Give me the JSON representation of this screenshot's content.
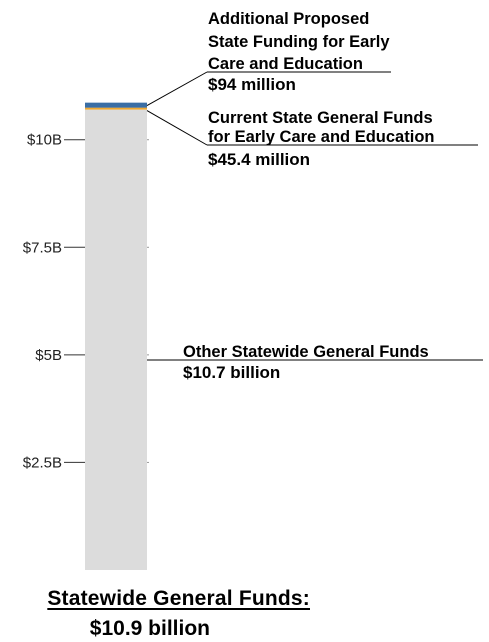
{
  "chart_data": {
    "type": "bar",
    "stacked": true,
    "categories": [
      "Statewide General Funds"
    ],
    "series": [
      {
        "name": "Other Statewide General Funds",
        "value_label": "$10.7 billion",
        "values": [
          10.7
        ],
        "color": "#dcdcdc"
      },
      {
        "name": "Current State General Funds for Early Care and Education",
        "value_label": "$45.4 million",
        "values": [
          0.0454
        ],
        "color": "#f0a830"
      },
      {
        "name": "Additional Proposed State Funding for Early Care and Education",
        "value_label": "$94 million",
        "values": [
          0.094
        ],
        "color": "#3a6ea5"
      }
    ],
    "yticks": [
      2.5,
      5,
      7.5,
      10
    ],
    "ytick_labels": [
      "$2.5B",
      "$5B",
      "$7.5B",
      "$10B"
    ],
    "ylim": [
      0,
      10.9
    ],
    "grid": false,
    "legend": "none"
  },
  "callouts": {
    "additional": {
      "lines": [
        "Additional Proposed",
        "State Funding for Early",
        "Care and Education"
      ],
      "value": "$94 million"
    },
    "current": {
      "lines": [
        "Current State General Funds",
        "for Early Care and Education"
      ],
      "value": "$45.4 million"
    },
    "other": {
      "lines": [
        "Other Statewide General Funds"
      ],
      "value": "$10.7 billion"
    }
  },
  "total": {
    "label": "Statewide General Funds:",
    "value": "$10.9 billion"
  }
}
